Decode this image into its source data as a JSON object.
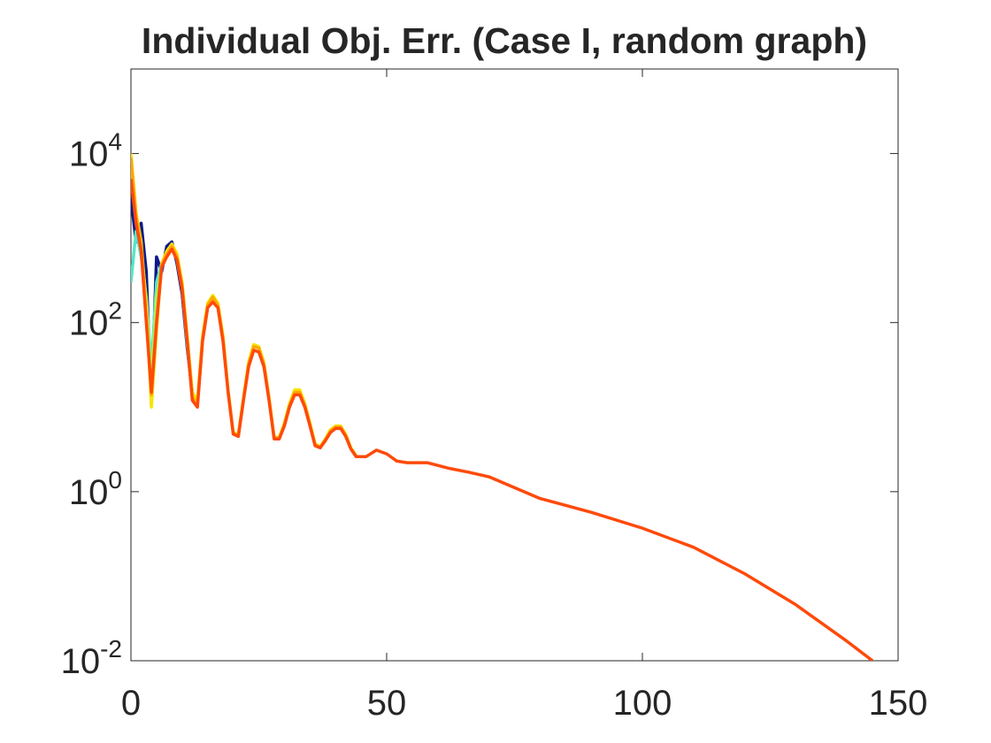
{
  "chart_data": {
    "type": "line",
    "title": "Individual Obj. Err. (Case I, random graph)",
    "x": [
      0,
      1,
      2,
      3,
      4,
      5,
      6,
      7,
      8,
      9,
      10,
      11,
      12,
      13,
      14,
      15,
      16,
      17,
      18,
      19,
      20,
      21,
      22,
      23,
      24,
      25,
      26,
      27,
      28,
      29,
      30,
      31,
      32,
      33,
      34,
      35,
      36,
      37,
      38,
      39,
      40,
      41,
      42,
      43,
      44,
      46,
      48,
      50,
      52,
      54,
      58,
      62,
      66,
      70,
      80,
      90,
      100,
      110,
      120,
      130,
      140,
      145
    ],
    "series": [
      {
        "color": "#0c1a8c",
        "values": [
          3000,
          900,
          1500,
          400,
          11,
          600,
          400,
          800,
          900,
          500,
          220,
          50,
          15,
          null,
          null,
          null,
          null,
          null,
          null,
          null,
          null,
          null,
          null,
          null,
          null,
          null,
          null,
          null,
          null,
          null,
          null,
          null,
          null,
          null,
          null,
          null,
          null,
          null,
          null,
          null,
          null,
          null,
          null,
          null,
          null,
          null,
          null,
          null,
          null,
          null,
          null,
          null,
          null,
          null,
          null,
          null,
          null,
          null,
          null,
          null,
          null,
          null
        ]
      },
      {
        "color": "#55e6c8",
        "values": [
          300,
          1200,
          600,
          200,
          30,
          300,
          500,
          650,
          800,
          550,
          260,
          55,
          14,
          null,
          null,
          null,
          null,
          null,
          null,
          null,
          null,
          null,
          null,
          null,
          null,
          null,
          null,
          null,
          null,
          null,
          null,
          null,
          null,
          null,
          null,
          null,
          null,
          null,
          null,
          null,
          null,
          null,
          null,
          null,
          null,
          null,
          null,
          null,
          null,
          null,
          null,
          null,
          null,
          null,
          null,
          null,
          null,
          null,
          null,
          null,
          null,
          null
        ]
      },
      {
        "color": "#b6ee4a",
        "values": [
          7000,
          1600,
          750,
          180,
          20,
          200,
          460,
          620,
          780,
          570,
          270,
          60,
          13,
          null,
          null,
          null,
          null,
          null,
          null,
          null,
          null,
          null,
          null,
          null,
          null,
          null,
          null,
          null,
          null,
          null,
          null,
          null,
          null,
          null,
          null,
          null,
          null,
          null,
          null,
          null,
          null,
          null,
          null,
          null,
          null,
          null,
          null,
          null,
          null,
          null,
          null,
          null,
          null,
          null,
          null,
          null,
          null,
          null,
          null,
          null,
          null,
          null
        ]
      },
      {
        "color": "#f5e600",
        "values": [
          10000,
          2000,
          900,
          150,
          10,
          80,
          500,
          700,
          850,
          650,
          300,
          70,
          15,
          12,
          70,
          170,
          210,
          170,
          70,
          16,
          5,
          4.8,
          13,
          34,
          55,
          52,
          34,
          13,
          4.4,
          4.4,
          6.5,
          11,
          16,
          16,
          11,
          6.5,
          3.7,
          3.4,
          4.2,
          5.4,
          6,
          6,
          4.8,
          3.3,
          2.7,
          null,
          null,
          null,
          null,
          null,
          null,
          null,
          null,
          null,
          null,
          null,
          null,
          null,
          null,
          null,
          null,
          null
        ]
      },
      {
        "color": "#ffa800",
        "values": [
          9000,
          1800,
          800,
          120,
          14,
          90,
          480,
          650,
          800,
          600,
          280,
          65,
          13,
          11,
          65,
          160,
          200,
          160,
          65,
          15,
          4.9,
          4.6,
          12.5,
          32,
          52,
          50,
          32,
          12.5,
          4.3,
          4.3,
          6.2,
          10.5,
          15,
          15,
          10.5,
          6.2,
          3.6,
          3.35,
          4.1,
          5.2,
          5.8,
          5.8,
          4.6,
          3.25,
          2.65,
          null,
          null,
          null,
          null,
          null,
          null,
          null,
          null,
          null,
          null,
          null,
          null,
          null,
          null,
          null,
          null,
          null
        ]
      },
      {
        "color": "#ff4a0a",
        "values": [
          5000,
          1500,
          700,
          100,
          15,
          100,
          450,
          600,
          740,
          550,
          250,
          60,
          12,
          10,
          60,
          150,
          175,
          150,
          60,
          15,
          4.8,
          4.5,
          12,
          30,
          47,
          45,
          30,
          12,
          4.2,
          4.2,
          6,
          10,
          14,
          14,
          10,
          6,
          3.5,
          3.3,
          4,
          5,
          5.6,
          5.6,
          4.5,
          3.2,
          2.6,
          2.6,
          3.1,
          2.8,
          2.3,
          2.2,
          2.2,
          1.9,
          1.7,
          1.5,
          0.83,
          0.57,
          0.37,
          0.22,
          0.107,
          0.046,
          0.017,
          0.01
        ]
      }
    ],
    "xlim": [
      0,
      150
    ],
    "xticks": [
      0,
      50,
      100,
      150
    ],
    "ylim": [
      0.01,
      100000
    ],
    "log_y": true,
    "yticks": [
      {
        "value": 0.01,
        "label": {
          "base": "10",
          "exponent": "-2"
        }
      },
      {
        "value": 1,
        "label": {
          "base": "10",
          "exponent": "0"
        }
      },
      {
        "value": 100,
        "label": {
          "base": "10",
          "exponent": "2"
        }
      },
      {
        "value": 10000,
        "label": {
          "base": "10",
          "exponent": "4"
        }
      }
    ]
  }
}
